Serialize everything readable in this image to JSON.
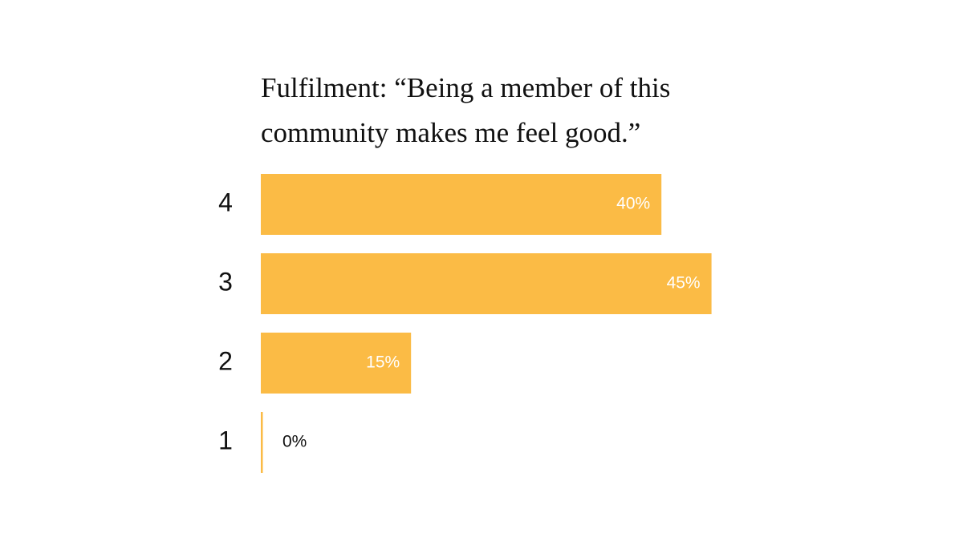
{
  "chart_data": {
    "type": "hbar",
    "title": "Fulfilment: “Being a member of this community makes me feel good.”",
    "categories": [
      "4",
      "3",
      "2",
      "1"
    ],
    "values": [
      40,
      45,
      15,
      0
    ],
    "value_labels": [
      "40%",
      "45%",
      "15%",
      "0%"
    ],
    "color": "#fbbb45"
  }
}
